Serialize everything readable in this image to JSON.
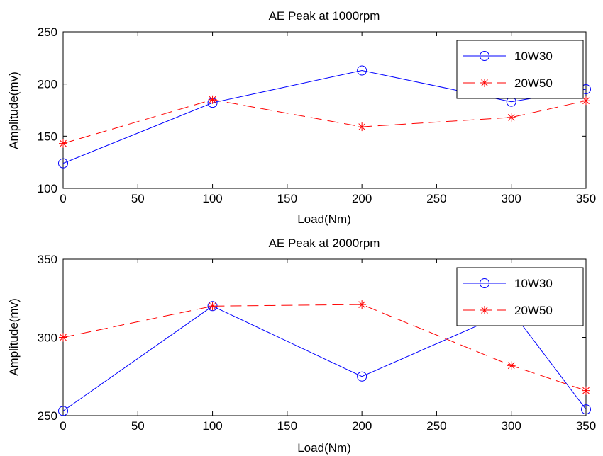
{
  "chart_data": [
    {
      "type": "line",
      "title": "AE Peak at 1000rpm",
      "xlabel": "Load(Nm)",
      "ylabel": "Amplitude(mv)",
      "x": [
        0,
        100,
        200,
        300,
        350
      ],
      "xlim": [
        0,
        350
      ],
      "ylim": [
        100,
        250
      ],
      "xticks": [
        0,
        50,
        100,
        150,
        200,
        250,
        300,
        350
      ],
      "yticks": [
        100,
        150,
        200,
        250
      ],
      "grid": false,
      "legend_position": "top-right",
      "series": [
        {
          "name": "10W30",
          "color": "#0000ff",
          "marker": "circle",
          "line_style": "solid",
          "values": [
            124,
            182,
            213,
            183,
            195
          ]
        },
        {
          "name": "20W50",
          "color": "#ff0000",
          "marker": "asterisk",
          "line_style": "dashed",
          "values": [
            143,
            185,
            159,
            168,
            184
          ]
        }
      ]
    },
    {
      "type": "line",
      "title": "AE Peak at 2000rpm",
      "xlabel": "Load(Nm)",
      "ylabel": "Amplitude(mv)",
      "x": [
        0,
        100,
        200,
        300,
        350
      ],
      "xlim": [
        0,
        350
      ],
      "ylim": [
        250,
        350
      ],
      "xticks": [
        0,
        50,
        100,
        150,
        200,
        250,
        300,
        350
      ],
      "yticks": [
        250,
        300,
        350
      ],
      "grid": false,
      "legend_position": "top-right",
      "series": [
        {
          "name": "10W30",
          "color": "#0000ff",
          "marker": "circle",
          "line_style": "solid",
          "values": [
            253,
            320,
            275,
            317,
            254
          ]
        },
        {
          "name": "20W50",
          "color": "#ff0000",
          "marker": "asterisk",
          "line_style": "dashed",
          "values": [
            300,
            320,
            321,
            282,
            266
          ]
        }
      ]
    }
  ]
}
